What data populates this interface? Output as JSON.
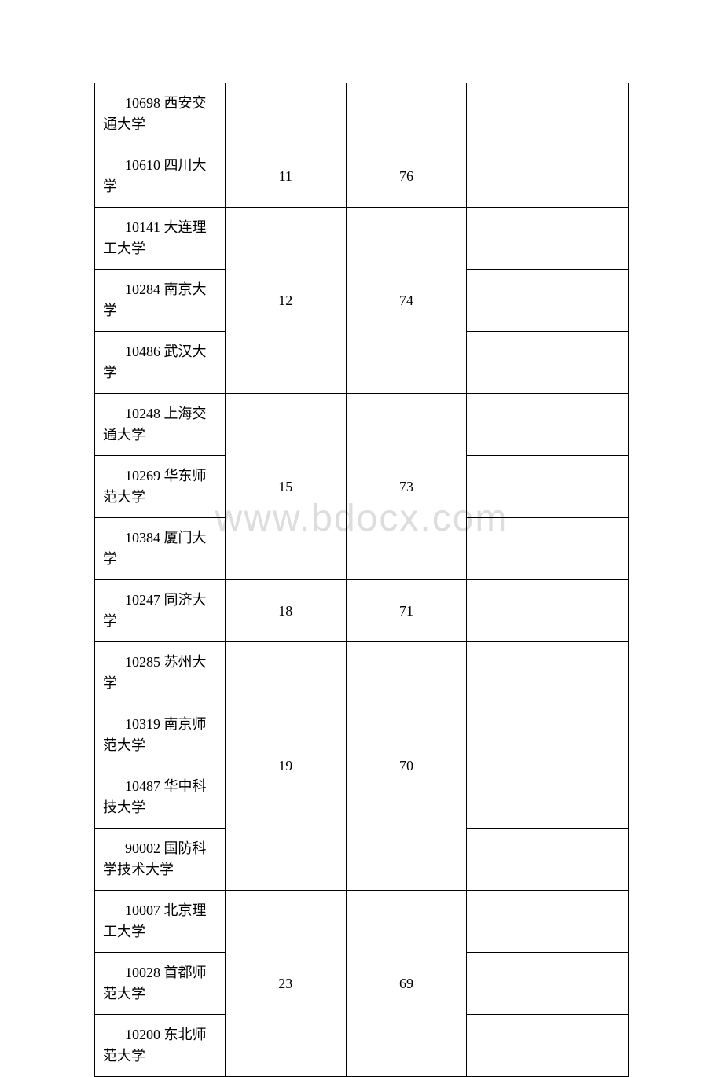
{
  "watermark": "www.bdocx.com",
  "table": {
    "columns": {
      "col1_width": 166,
      "col2_width": 154,
      "col3_width": 154,
      "col4_width": 206
    },
    "border_color": "#000000",
    "font_size": 18,
    "rows": [
      {
        "university": "10698 西安交通大学",
        "rank": "",
        "score": "",
        "extra": "",
        "rank_rowspan": 1,
        "score_rowspan": 1,
        "show_rank": true,
        "show_score": true
      },
      {
        "university": "10610 四川大学",
        "rank": "11",
        "score": "76",
        "extra": "",
        "rank_rowspan": 1,
        "score_rowspan": 1,
        "show_rank": true,
        "show_score": true
      },
      {
        "university": "10141 大连理工大学",
        "rank": "12",
        "score": "74",
        "extra": "",
        "rank_rowspan": 3,
        "score_rowspan": 3,
        "show_rank": true,
        "show_score": true
      },
      {
        "university": "10284 南京大学",
        "rank": "",
        "score": "",
        "extra": "",
        "rank_rowspan": 0,
        "score_rowspan": 0,
        "show_rank": false,
        "show_score": false
      },
      {
        "university": "10486 武汉大学",
        "rank": "",
        "score": "",
        "extra": "",
        "rank_rowspan": 0,
        "score_rowspan": 0,
        "show_rank": false,
        "show_score": false
      },
      {
        "university": "10248 上海交通大学",
        "rank": "15",
        "score": "73",
        "extra": "",
        "rank_rowspan": 3,
        "score_rowspan": 3,
        "show_rank": true,
        "show_score": true
      },
      {
        "university": "10269 华东师范大学",
        "rank": "",
        "score": "",
        "extra": "",
        "rank_rowspan": 0,
        "score_rowspan": 0,
        "show_rank": false,
        "show_score": false
      },
      {
        "university": "10384 厦门大学",
        "rank": "",
        "score": "",
        "extra": "",
        "rank_rowspan": 0,
        "score_rowspan": 0,
        "show_rank": false,
        "show_score": false
      },
      {
        "university": "10247 同济大学",
        "rank": "18",
        "score": "71",
        "extra": "",
        "rank_rowspan": 1,
        "score_rowspan": 1,
        "show_rank": true,
        "show_score": true
      },
      {
        "university": "10285 苏州大学",
        "rank": "19",
        "score": "70",
        "extra": "",
        "rank_rowspan": 4,
        "score_rowspan": 4,
        "show_rank": true,
        "show_score": true
      },
      {
        "university": "10319 南京师范大学",
        "rank": "",
        "score": "",
        "extra": "",
        "rank_rowspan": 0,
        "score_rowspan": 0,
        "show_rank": false,
        "show_score": false
      },
      {
        "university": "10487 华中科技大学",
        "rank": "",
        "score": "",
        "extra": "",
        "rank_rowspan": 0,
        "score_rowspan": 0,
        "show_rank": false,
        "show_score": false
      },
      {
        "university": "90002 国防科学技术大学",
        "rank": "",
        "score": "",
        "extra": "",
        "rank_rowspan": 0,
        "score_rowspan": 0,
        "show_rank": false,
        "show_score": false
      },
      {
        "university": "10007 北京理工大学",
        "rank": "23",
        "score": "69",
        "extra": "",
        "rank_rowspan": 3,
        "score_rowspan": 3,
        "show_rank": true,
        "show_score": true
      },
      {
        "university": "10028 首都师范大学",
        "rank": "",
        "score": "",
        "extra": "",
        "rank_rowspan": 0,
        "score_rowspan": 0,
        "show_rank": false,
        "show_score": false
      },
      {
        "university": "10200 东北师范大学",
        "rank": "",
        "score": "",
        "extra": "",
        "rank_rowspan": 0,
        "score_rowspan": 0,
        "show_rank": false,
        "show_score": false
      }
    ]
  }
}
